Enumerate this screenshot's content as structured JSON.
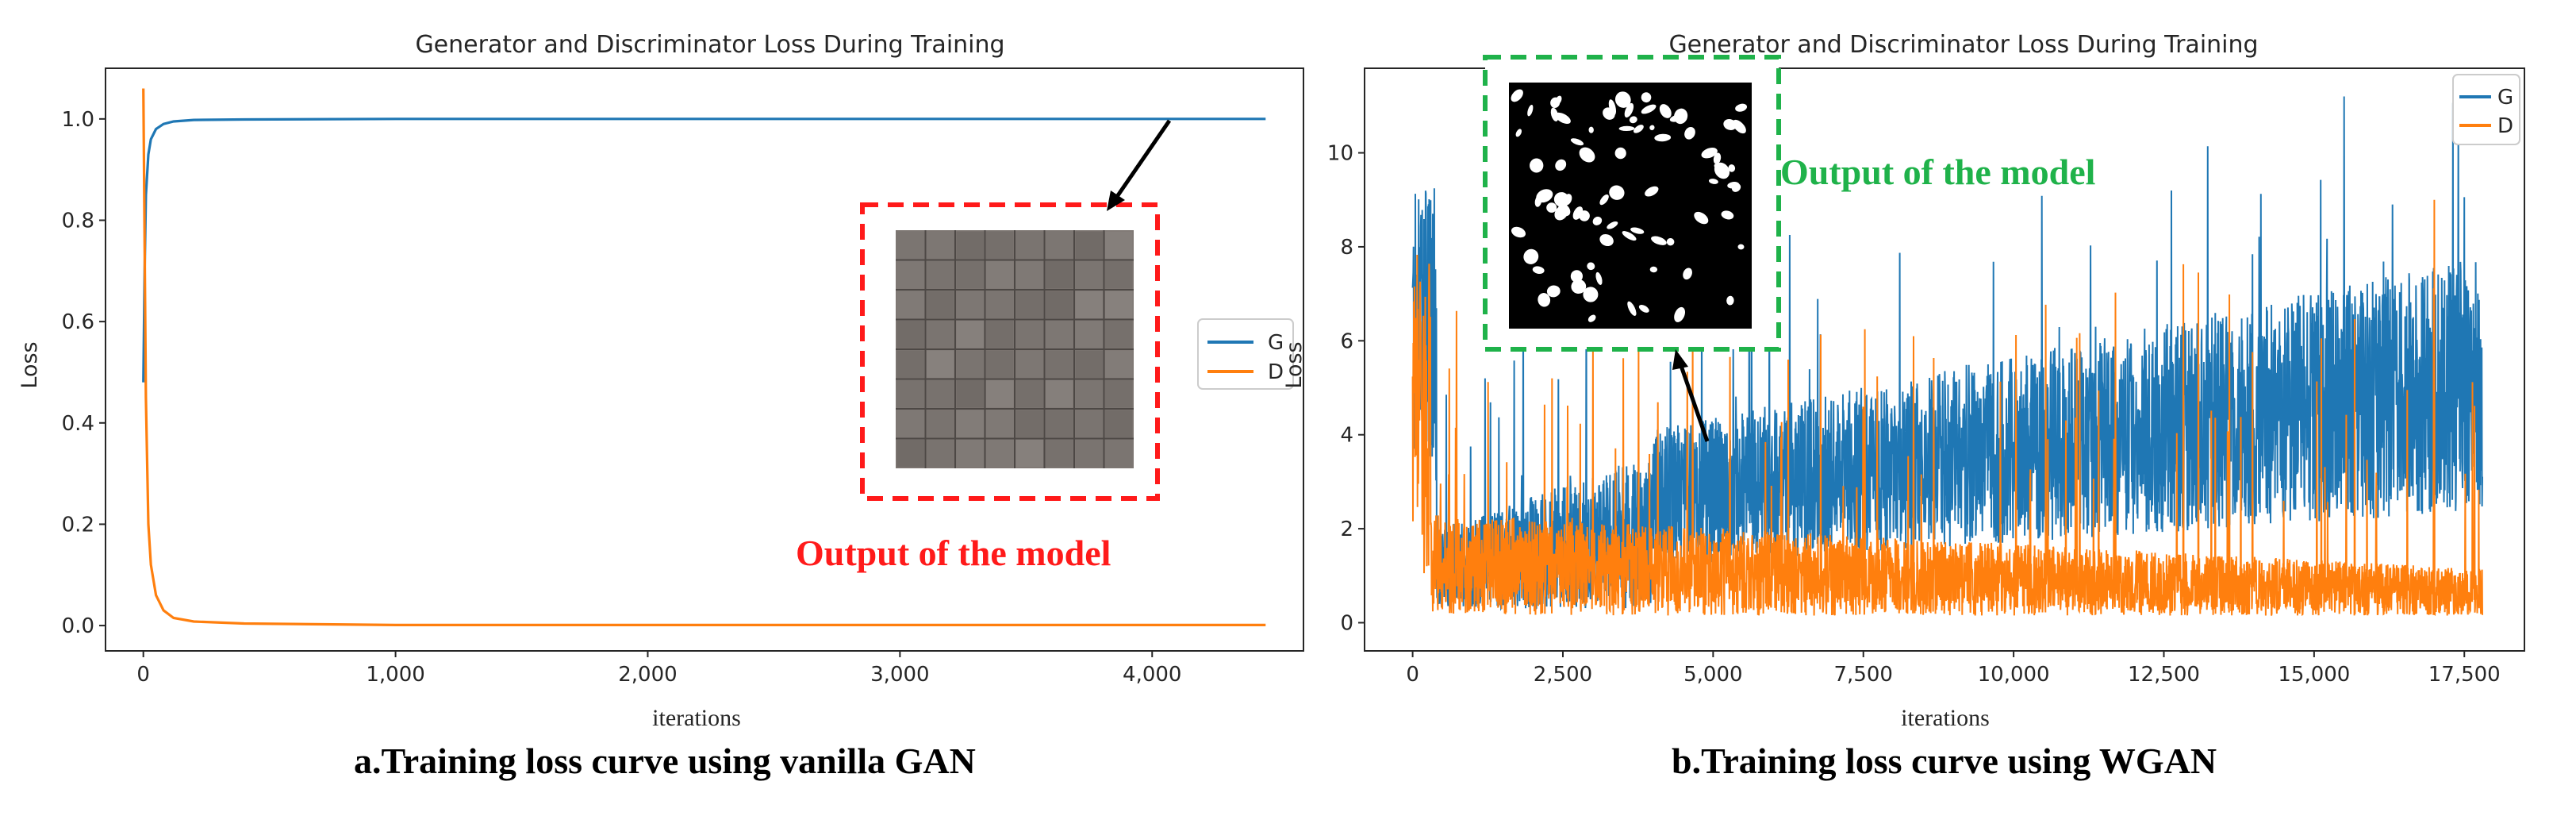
{
  "colors": {
    "G": "#1f77b4",
    "D": "#ff7f0e",
    "red_box": "#ff1a1a",
    "green_box": "#1fb24a"
  },
  "panels": {
    "a": {
      "caption": "a.Training  loss curve using vanilla GAN",
      "annotation": "Output of the model",
      "inset_description": "8x8 grid of gray noise images"
    },
    "b": {
      "caption": "b.Training  loss curve using WGAN",
      "annotation": "Output of the model",
      "inset_description": "black image with white blobs"
    }
  },
  "chart_data": [
    {
      "type": "line",
      "title": "Generator and Discriminator Loss During Training",
      "xlabel": "iterations",
      "ylabel": "Loss",
      "xlim": [
        -150,
        4600
      ],
      "ylim": [
        -0.05,
        1.1
      ],
      "xticks": [
        0,
        1000,
        2000,
        3000,
        4000
      ],
      "xtick_labels": [
        "0",
        "1,000",
        "2,000",
        "3,000",
        "4,000"
      ],
      "yticks": [
        0.0,
        0.2,
        0.4,
        0.6,
        0.8,
        1.0
      ],
      "ytick_labels": [
        "0.0",
        "0.2",
        "0.4",
        "0.6",
        "0.8",
        "1.0"
      ],
      "legend": [
        "G",
        "D"
      ],
      "legend_position": "center-right",
      "series": [
        {
          "name": "G",
          "x": [
            0,
            5,
            10,
            20,
            30,
            50,
            80,
            120,
            200,
            400,
            1000,
            2000,
            3000,
            4000,
            4450
          ],
          "y": [
            0.48,
            0.7,
            0.85,
            0.93,
            0.96,
            0.98,
            0.99,
            0.995,
            0.998,
            0.999,
            1.0,
            1.0,
            1.0,
            1.0,
            1.0
          ]
        },
        {
          "name": "D",
          "x": [
            0,
            5,
            10,
            20,
            30,
            50,
            80,
            120,
            200,
            400,
            1000,
            2000,
            3000,
            4000,
            4450
          ],
          "y": [
            1.06,
            0.75,
            0.45,
            0.2,
            0.12,
            0.06,
            0.03,
            0.015,
            0.008,
            0.004,
            0.001,
            0.001,
            0.001,
            0.001,
            0.001
          ]
        }
      ]
    },
    {
      "type": "line",
      "title": "Generator and Discriminator Loss During Training",
      "xlabel": "iterations",
      "ylabel": "Loss",
      "xlim": [
        -800,
        18500
      ],
      "ylim": [
        -0.6,
        11.8
      ],
      "xticks": [
        0,
        2500,
        5000,
        7500,
        10000,
        12500,
        15000,
        17500
      ],
      "xtick_labels": [
        "0",
        "2,500",
        "5,000",
        "7,500",
        "10,000",
        "12,500",
        "15,000",
        "17,500"
      ],
      "yticks": [
        0,
        2,
        4,
        6,
        8,
        10
      ],
      "ytick_labels": [
        "0",
        "2",
        "4",
        "6",
        "8",
        "10"
      ],
      "legend": [
        "G",
        "D"
      ],
      "legend_position": "top-right",
      "n_iterations": 17800,
      "series": [
        {
          "name": "G",
          "description": "noisy, mean about 1.5 early rising to about 4 by end, spikes up to 11.2 near 15,500"
        },
        {
          "name": "D",
          "description": "noisy, about 1-2 throughout, early peak 7.7, spikes up to about 9 near 17,000"
        }
      ]
    }
  ]
}
